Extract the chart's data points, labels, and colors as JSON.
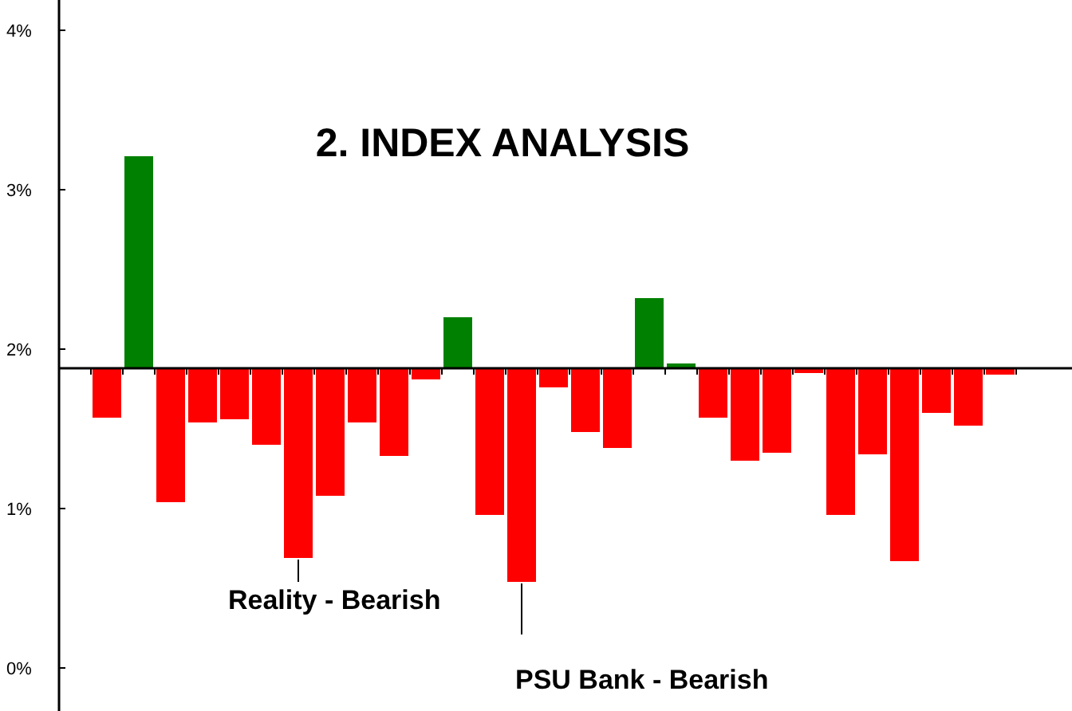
{
  "chart_data": {
    "type": "bar",
    "title": "2. INDEX ANALYSIS",
    "categories": [
      null,
      null,
      null,
      null,
      null,
      null,
      null,
      null,
      null,
      null,
      null,
      null,
      null,
      null,
      null,
      null,
      null,
      null,
      null,
      null,
      null,
      null,
      null,
      null,
      null,
      null,
      null,
      null,
      null
    ],
    "values": [
      -0.31,
      1.33,
      -0.84,
      -0.34,
      -0.32,
      -0.48,
      -1.19,
      -0.8,
      -0.34,
      -0.55,
      -0.07,
      0.32,
      -0.92,
      -1.34,
      -0.12,
      -0.4,
      -0.5,
      0.44,
      0.03,
      -0.31,
      -0.58,
      -0.53,
      -0.03,
      -0.92,
      -0.54,
      -1.21,
      -0.28,
      -0.36,
      -0.04
    ],
    "base": [
      1.88,
      1.88,
      1.88,
      1.88,
      1.88,
      1.88,
      1.88,
      1.88,
      1.88,
      1.88,
      1.88,
      1.88,
      1.88,
      1.88,
      1.88,
      1.88,
      1.88,
      1.88,
      1.88,
      1.88,
      1.88,
      1.88,
      1.88,
      1.88,
      1.88,
      1.88,
      1.88,
      1.88,
      1.88
    ],
    "colors": [
      "#ff0000",
      "#008000",
      "#ff0000",
      "#ff0000",
      "#ff0000",
      "#ff0000",
      "#ff0000",
      "#ff0000",
      "#ff0000",
      "#ff0000",
      "#ff0000",
      "#008000",
      "#ff0000",
      "#ff0000",
      "#ff0000",
      "#ff0000",
      "#ff0000",
      "#008000",
      "#008000",
      "#ff0000",
      "#ff0000",
      "#ff0000",
      "#ff0000",
      "#ff0000",
      "#ff0000",
      "#ff0000",
      "#ff0000",
      "#ff0000",
      "#ff0000"
    ],
    "ylim": [
      -0.27,
      4.19
    ],
    "yticks": [
      {
        "value": 0,
        "label": "0%"
      },
      {
        "value": 1,
        "label": "1%"
      },
      {
        "value": 2,
        "label": "2%"
      },
      {
        "value": 3,
        "label": "3%"
      },
      {
        "value": 4,
        "label": "4%"
      }
    ],
    "ref_lines": [
      {
        "axis": "y",
        "value": 1.88
      }
    ],
    "annotations": [
      "Reality - Bearish",
      "PSU Bank - Bearish"
    ],
    "tick_labels": "y",
    "grid": false
  }
}
